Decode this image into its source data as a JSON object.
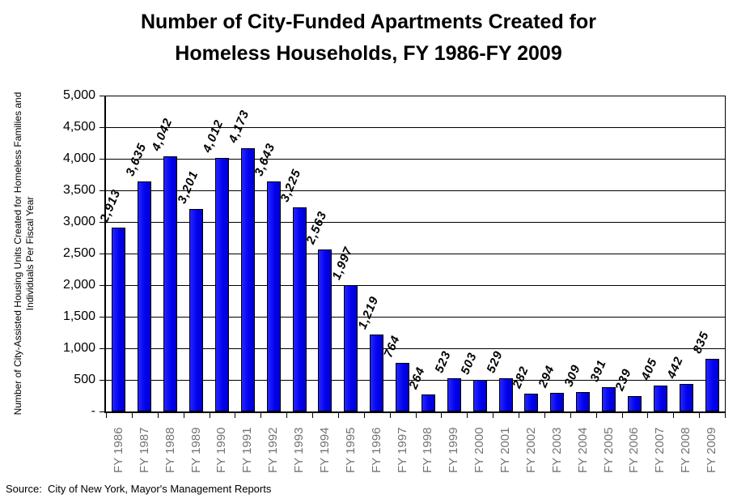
{
  "page": {
    "background": "#ffffff"
  },
  "title": {
    "line1": "Number of City-Funded Apartments Created for",
    "line2": "Homeless Households, FY 1986-FY 2009"
  },
  "source_note": "Source:  City of New York, Mayor's Management Reports",
  "colors": {
    "bar_fill": "#0202ee",
    "bar_highlight": "#2626ff",
    "bar_border": "#000000",
    "grid_line": "#000000",
    "axis_line": "#000000",
    "x_tick_label_color": "#737373",
    "text": "#000000"
  },
  "chart_data": {
    "type": "bar",
    "title": "Number of City-Funded Apartments Created for Homeless Households, FY 1986-FY 2009",
    "xlabel": "",
    "ylabel": "Number of City-Assisted Housing Units Created for Homeless Families and Individuals Per Fiscal Year",
    "ylabel_line1": "Number of City-Assisted Housing Units Created for Homeless Families and",
    "ylabel_line2": "Individuals Per Fiscal Year",
    "ylim": [
      0,
      5000
    ],
    "ytick_step": 500,
    "ytick_labels_top_to_bottom": [
      "5,000",
      "4,500",
      "4,000",
      "3,500",
      "3,000",
      "2,500",
      "2,000",
      "1,500",
      "1,000",
      "500",
      "-"
    ],
    "grid": true,
    "legend": false,
    "value_label_rotation_deg": -67,
    "categories": [
      "FY 1986",
      "FY 1987",
      "FY 1988",
      "FY 1989",
      "FY 1990",
      "FY 1991",
      "FY 1992",
      "FY 1993",
      "FY 1994",
      "FY 1995",
      "FY 1996",
      "FY 1997",
      "FY 1998",
      "FY 1999",
      "FY 2000",
      "FY 2001",
      "FY 2002",
      "FY 2003",
      "FY 2004",
      "FY 2005",
      "FY 2006",
      "FY 2007",
      "FY 2008",
      "FY 2009"
    ],
    "values": [
      2913,
      3635,
      4042,
      3201,
      4012,
      4173,
      3643,
      3225,
      2563,
      1997,
      1219,
      764,
      264,
      523,
      503,
      529,
      282,
      294,
      309,
      391,
      239,
      405,
      442,
      835
    ],
    "value_labels": [
      "2,913",
      "3,635",
      "4,042",
      "3,201",
      "4,012",
      "4,173",
      "3,643",
      "3,225",
      "2,563",
      "1,997",
      "1,219",
      "764",
      "264",
      "523",
      "503",
      "529",
      "282",
      "294",
      "309",
      "391",
      "239",
      "405",
      "442",
      "835"
    ]
  }
}
